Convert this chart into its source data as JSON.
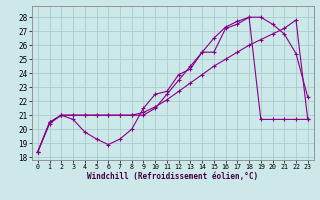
{
  "xlabel": "Windchill (Refroidissement éolien,°C)",
  "bg_color": "#cce8e8",
  "grid_color": "#aacccc",
  "line_color": "#880088",
  "xlim": [
    -0.5,
    23.5
  ],
  "ylim": [
    17.8,
    28.8
  ],
  "xticks": [
    0,
    1,
    2,
    3,
    4,
    5,
    6,
    7,
    8,
    9,
    10,
    11,
    12,
    13,
    14,
    15,
    16,
    17,
    18,
    19,
    20,
    21,
    22,
    23
  ],
  "yticks": [
    18,
    19,
    20,
    21,
    22,
    23,
    24,
    25,
    26,
    27,
    28
  ],
  "line1_x": [
    0,
    1,
    2,
    3,
    4,
    5,
    6,
    7,
    8,
    9,
    10,
    11,
    12,
    13,
    14,
    15,
    16,
    17,
    18,
    19,
    20,
    21,
    22,
    23
  ],
  "line1_y": [
    18.4,
    20.5,
    21.0,
    20.7,
    19.8,
    19.3,
    18.9,
    19.3,
    20.0,
    21.5,
    22.5,
    22.7,
    23.9,
    24.3,
    25.5,
    25.5,
    27.2,
    27.5,
    28.0,
    28.0,
    27.5,
    26.8,
    25.4,
    22.3
  ],
  "line2_x": [
    0,
    1,
    2,
    3,
    4,
    5,
    6,
    7,
    8,
    9,
    10,
    11,
    12,
    13,
    14,
    15,
    16,
    17,
    18,
    19,
    20,
    21,
    22,
    23
  ],
  "line2_y": [
    18.4,
    20.4,
    21.0,
    21.0,
    21.0,
    21.0,
    21.0,
    21.0,
    21.0,
    21.2,
    21.6,
    22.1,
    22.7,
    23.3,
    23.9,
    24.5,
    25.0,
    25.5,
    26.0,
    26.4,
    26.8,
    27.2,
    27.8,
    20.7
  ],
  "line3_x": [
    0,
    1,
    2,
    3,
    4,
    5,
    6,
    7,
    8,
    9,
    10,
    11,
    12,
    13,
    14,
    15,
    16,
    17,
    18,
    19,
    20,
    21,
    22,
    23
  ],
  "line3_y": [
    18.4,
    20.5,
    21.0,
    21.0,
    21.0,
    21.0,
    21.0,
    21.0,
    21.0,
    21.0,
    21.5,
    22.5,
    23.5,
    24.5,
    25.5,
    26.5,
    27.3,
    27.7,
    28.0,
    20.7,
    20.7,
    20.7,
    20.7,
    20.7
  ]
}
